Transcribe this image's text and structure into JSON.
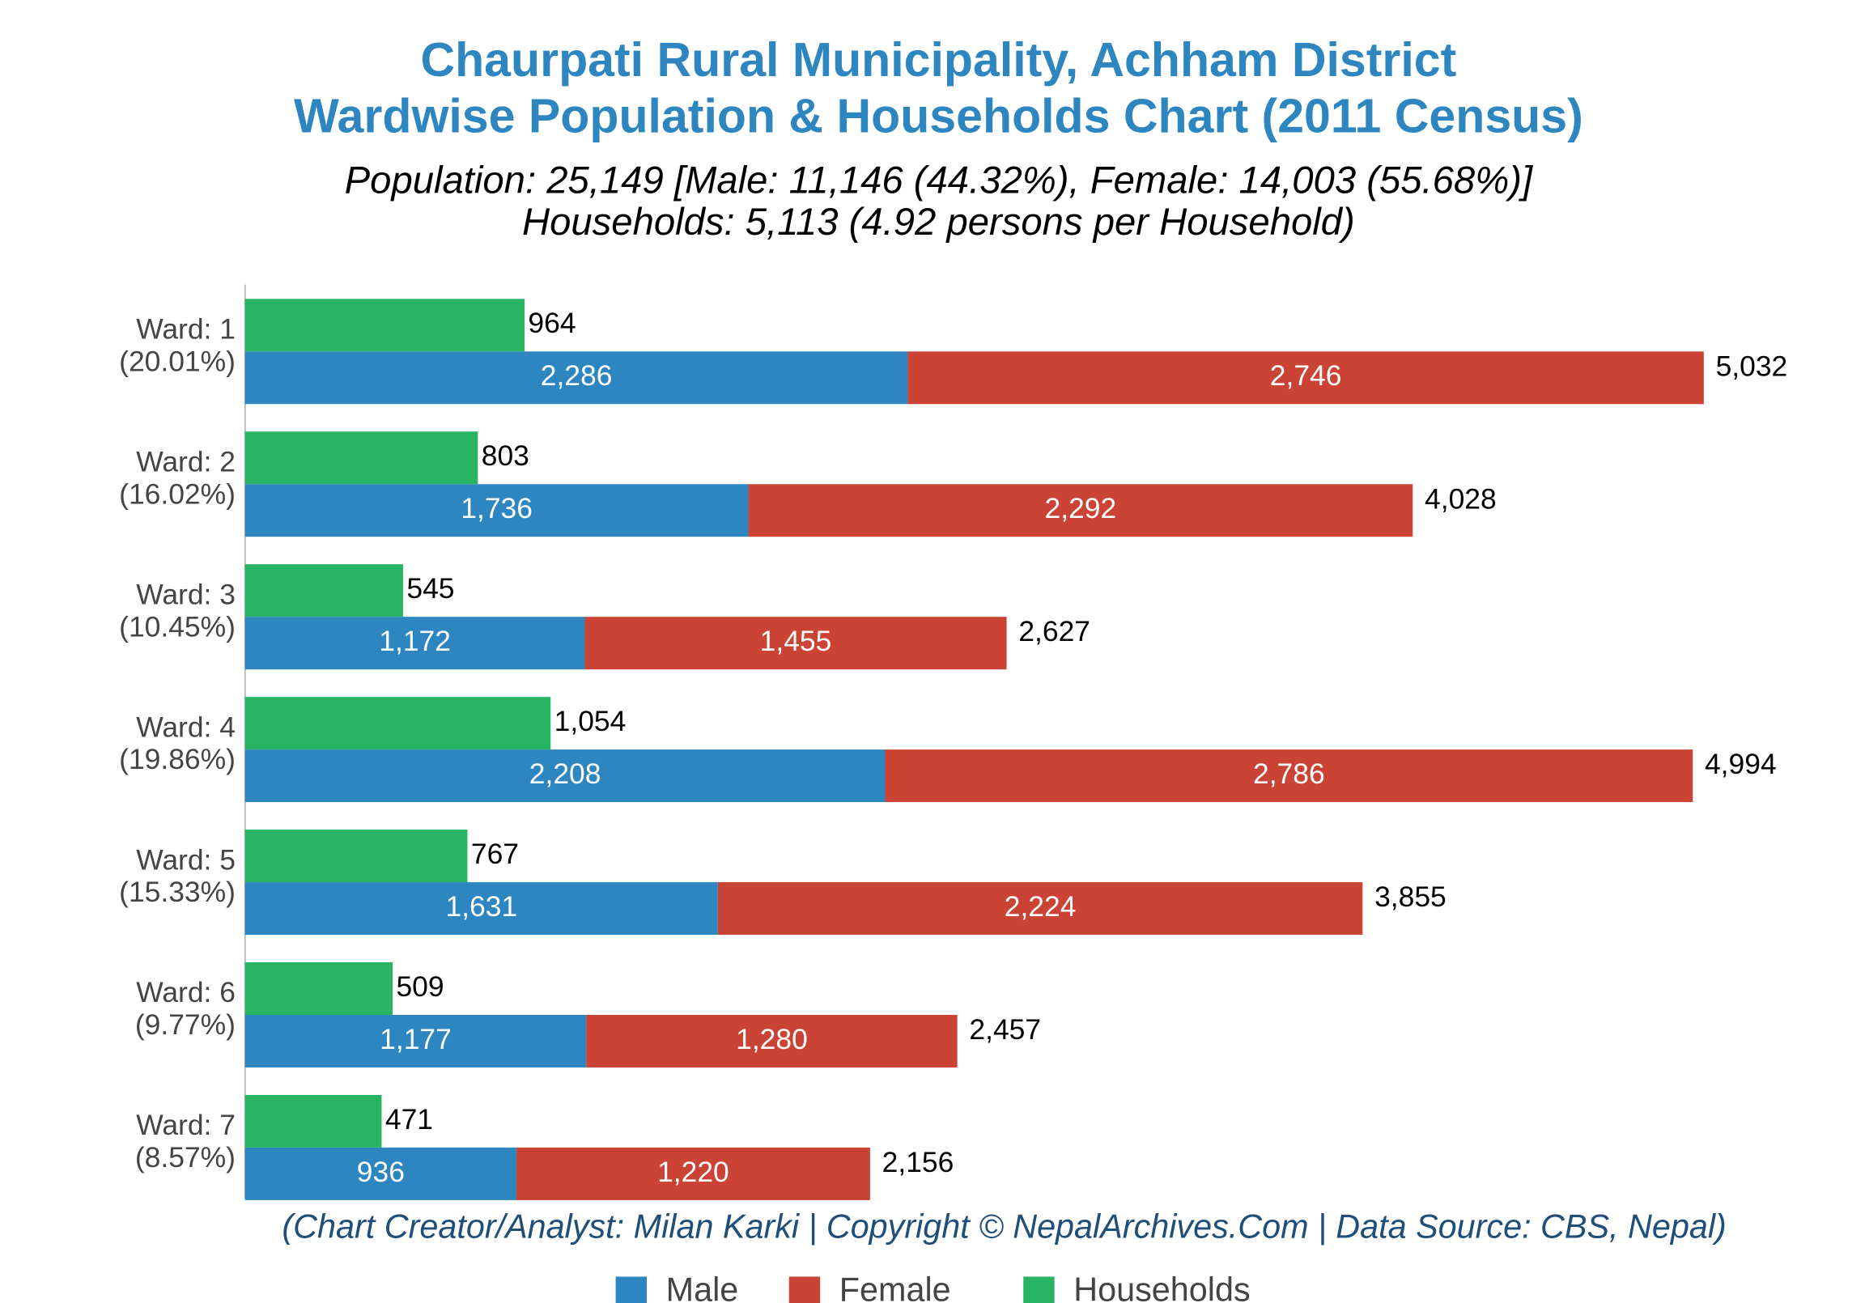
{
  "chart_data": {
    "type": "bar",
    "orientation": "horizontal",
    "title_lines": [
      "Chaurpati Rural Municipality, Achham District",
      "Wardwise Population & Households Chart (2011 Census)"
    ],
    "subtitle_lines": [
      "Population: 25,149 [Male: 11,146 (44.32%), Female: 14,003 (55.68%)]",
      "Households: 5,113 (4.92 persons per Household)"
    ],
    "footer": "(Chart Creator/Analyst: Milan Karki | Copyright © NepalArchives.Com | Data Source: CBS, Nepal)",
    "categories": [
      "Ward: 1",
      "Ward: 2",
      "Ward: 3",
      "Ward: 4",
      "Ward: 5",
      "Ward: 6",
      "Ward: 7"
    ],
    "category_shares": [
      "(20.01%)",
      "(16.02%)",
      "(10.45%)",
      "(19.86%)",
      "(15.33%)",
      "(9.77%)",
      "(8.57%)"
    ],
    "series": [
      {
        "name": "Male",
        "color": "#2e86c1",
        "stack": "population",
        "values": [
          2286,
          1736,
          1172,
          2208,
          1631,
          1177,
          936
        ],
        "value_labels": [
          "2,286",
          "1,736",
          "1,172",
          "2,208",
          "1,631",
          "1,177",
          "936"
        ]
      },
      {
        "name": "Female",
        "color": "#cb4335",
        "stack": "population",
        "values": [
          2746,
          2292,
          1455,
          2786,
          2224,
          1280,
          1220
        ],
        "value_labels": [
          "2,746",
          "2,292",
          "1,455",
          "2,786",
          "2,224",
          "1,280",
          "1,220"
        ]
      },
      {
        "name": "Households",
        "color": "#28b463",
        "stack": "households",
        "values": [
          964,
          803,
          545,
          1054,
          767,
          509,
          471
        ],
        "value_labels": [
          "964",
          "803",
          "545",
          "1,054",
          "767",
          "509",
          "471"
        ]
      }
    ],
    "totals": [
      5032,
      4028,
      2627,
      4994,
      3855,
      2457,
      2156
    ],
    "total_labels": [
      "5,032",
      "4,028",
      "2,627",
      "4,994",
      "3,855",
      "2,457",
      "2,156"
    ],
    "xlim": [
      0,
      5250
    ],
    "legend": "bottom"
  }
}
